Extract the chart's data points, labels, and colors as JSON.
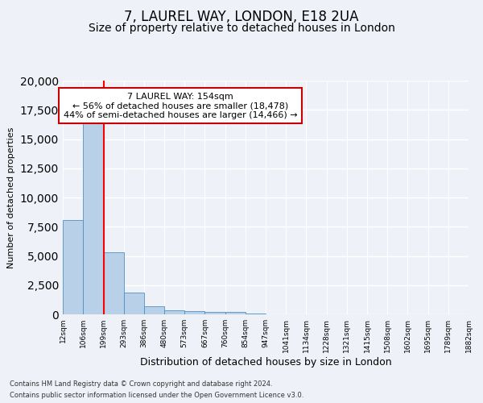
{
  "title1": "7, LAUREL WAY, LONDON, E18 2UA",
  "title2": "Size of property relative to detached houses in London",
  "xlabel": "Distribution of detached houses by size in London",
  "ylabel": "Number of detached properties",
  "bar_values": [
    8100,
    16500,
    5300,
    1850,
    700,
    350,
    280,
    200,
    200,
    50,
    20,
    10,
    5,
    3,
    2,
    1,
    1,
    0,
    0,
    0
  ],
  "bar_labels": [
    "12sqm",
    "106sqm",
    "199sqm",
    "293sqm",
    "386sqm",
    "480sqm",
    "573sqm",
    "667sqm",
    "760sqm",
    "854sqm",
    "947sqm",
    "1041sqm",
    "1134sqm",
    "1228sqm",
    "1321sqm",
    "1415sqm",
    "1508sqm",
    "1602sqm",
    "1695sqm",
    "1789sqm",
    "1882sqm"
  ],
  "bar_color": "#b8d0e8",
  "bar_edge_color": "#5090c0",
  "red_line_x": 1.52,
  "annotation_text": "7 LAUREL WAY: 154sqm\n← 56% of detached houses are smaller (18,478)\n44% of semi-detached houses are larger (14,466) →",
  "annotation_box_color": "#ffffff",
  "annotation_box_edge": "#cc0000",
  "footer_line1": "Contains HM Land Registry data © Crown copyright and database right 2024.",
  "footer_line2": "Contains public sector information licensed under the Open Government Licence v3.0.",
  "ylim": [
    0,
    20000
  ],
  "background_color": "#eef2f8",
  "grid_color": "#ffffff",
  "title1_fontsize": 12,
  "title2_fontsize": 10,
  "annot_fontsize": 8,
  "ylabel_fontsize": 8,
  "xlabel_fontsize": 9,
  "tick_fontsize": 6.5
}
